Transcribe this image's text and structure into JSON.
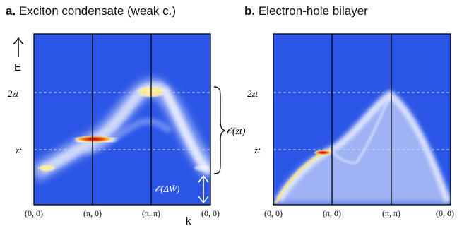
{
  "figure": {
    "panel_a": {
      "letter": "a.",
      "title": "Exciton condensate (weak c.)",
      "y_axis_label": "E",
      "x_axis_label": "k",
      "y_ticks": [
        "2zt",
        "zt"
      ],
      "x_ticks": [
        "(0, 0)",
        "(π, 0)",
        "(π, π)",
        "(0, 0)"
      ],
      "annotation_large": "𝒪(zt)",
      "annotation_small": "𝒪(ΔW̄)"
    },
    "panel_b": {
      "letter": "b.",
      "title": "Electron-hole bilayer",
      "y_ticks": [
        "2zt",
        "zt"
      ],
      "x_ticks": [
        "(0, 0)",
        "(π, 0)",
        "(π, π)",
        "(0, 0)"
      ]
    },
    "colors": {
      "background_blue": "#2a55e6",
      "band_white": "#f4f7ff",
      "hot_yellow": "#ffe98a",
      "hot_red": "#c8200a"
    }
  }
}
